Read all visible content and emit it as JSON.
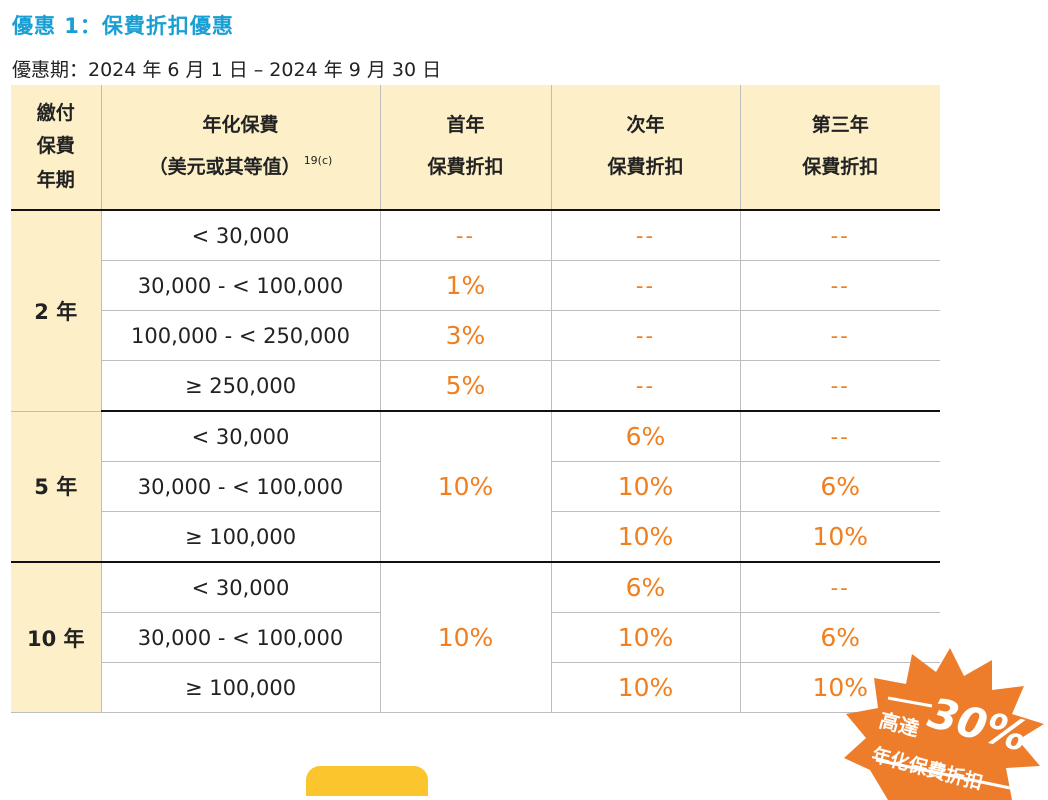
{
  "title": "優惠 1：保費折扣優惠",
  "period": "優惠期：2024 年 6 月 1 日 – 2024 年 9 月 30 日",
  "table": {
    "headers": {
      "term": [
        "繳付",
        "保費",
        "年期"
      ],
      "premium": [
        "年化保費",
        "（美元或其等值）"
      ],
      "premium_note": "19(c)",
      "first_year": [
        "首年",
        "保費折扣"
      ],
      "second_year": [
        "次年",
        "保費折扣"
      ],
      "third_year": [
        "第三年",
        "保費折扣"
      ]
    },
    "groups": [
      {
        "term": "2 年",
        "rows": [
          {
            "range": "< 30,000",
            "first": "--",
            "second": "--",
            "third": "--"
          },
          {
            "range": "30,000 - < 100,000",
            "first": "1%",
            "second": "--",
            "third": "--"
          },
          {
            "range": "100,000 - < 250,000",
            "first": "3%",
            "second": "--",
            "third": "--"
          },
          {
            "range": "≥ 250,000",
            "first": "5%",
            "second": "--",
            "third": "--"
          }
        ]
      },
      {
        "term": "5 年",
        "first": "10%",
        "rows": [
          {
            "range": "< 30,000",
            "second": "6%",
            "third": "--"
          },
          {
            "range": "30,000 - < 100,000",
            "second": "10%",
            "third": "6%"
          },
          {
            "range": "≥ 100,000",
            "second": "10%",
            "third": "10%"
          }
        ]
      },
      {
        "term": "10 年",
        "first": "10%",
        "rows": [
          {
            "range": "< 30,000",
            "second": "6%",
            "third": "--"
          },
          {
            "range": "30,000 - < 100,000",
            "second": "10%",
            "third": "6%"
          },
          {
            "range": "≥ 100,000",
            "second": "10%",
            "third": "10%"
          }
        ]
      }
    ]
  },
  "badge": {
    "prefix": "高達",
    "value": "30%",
    "label": "年化保費折扣",
    "color": "#ee7d2b"
  },
  "colors": {
    "title": "#1a9fd4",
    "header_bg": "#fdf0c9",
    "accent": "#f07f1f",
    "tab": "#fbc52d"
  }
}
